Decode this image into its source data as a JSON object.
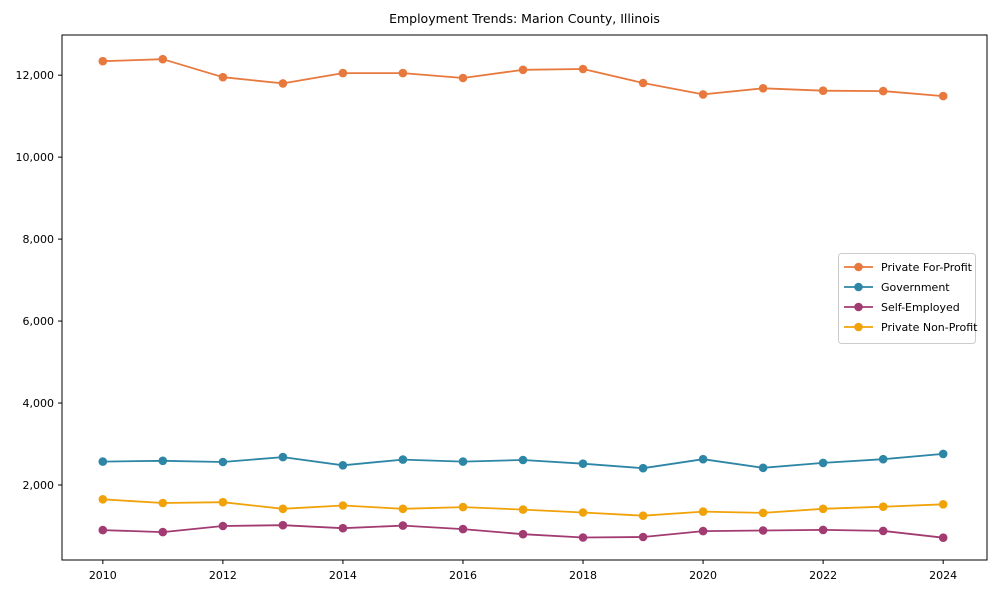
{
  "chart_data": {
    "type": "line",
    "title": "Employment Trends: Marion County, Illinois",
    "x": [
      2010,
      2011,
      2012,
      2013,
      2014,
      2015,
      2016,
      2017,
      2018,
      2019,
      2020,
      2021,
      2022,
      2023,
      2024
    ],
    "series": [
      {
        "name": "Private For-Profit",
        "color": "#E8793E",
        "values": [
          12340,
          12390,
          11950,
          11800,
          12050,
          12050,
          11930,
          12130,
          12150,
          11810,
          11530,
          11680,
          11620,
          11610,
          11490
        ]
      },
      {
        "name": "Government",
        "color": "#2E86A6",
        "values": [
          2570,
          2590,
          2560,
          2680,
          2480,
          2620,
          2570,
          2610,
          2520,
          2410,
          2630,
          2420,
          2540,
          2630,
          2760
        ]
      },
      {
        "name": "Self-Employed",
        "color": "#A23B72",
        "values": [
          900,
          850,
          1000,
          1020,
          945,
          1010,
          925,
          800,
          720,
          730,
          875,
          890,
          905,
          880,
          715
        ]
      },
      {
        "name": "Private Non-Profit",
        "color": "#F1A208",
        "values": [
          1650,
          1560,
          1580,
          1420,
          1500,
          1420,
          1460,
          1400,
          1330,
          1250,
          1350,
          1320,
          1420,
          1470,
          1530
        ]
      }
    ],
    "xticks": {
      "values": [
        2010,
        2012,
        2014,
        2016,
        2018,
        2020,
        2022,
        2024
      ],
      "labels": [
        "2010",
        "2012",
        "2014",
        "2016",
        "2018",
        "2020",
        "2022",
        "2024"
      ]
    },
    "yticks": {
      "values": [
        2000,
        4000,
        6000,
        8000,
        10000,
        12000
      ],
      "labels": [
        "2,000",
        "4,000",
        "6,000",
        "8,000",
        "10,000",
        "12,000"
      ]
    },
    "xlim": [
      2009.32,
      2024.73
    ],
    "ylim": [
      170,
      12980
    ],
    "grid": false,
    "legend_position": "center right",
    "axis_color": "#000000",
    "legend_border_color": "#cccccc"
  }
}
